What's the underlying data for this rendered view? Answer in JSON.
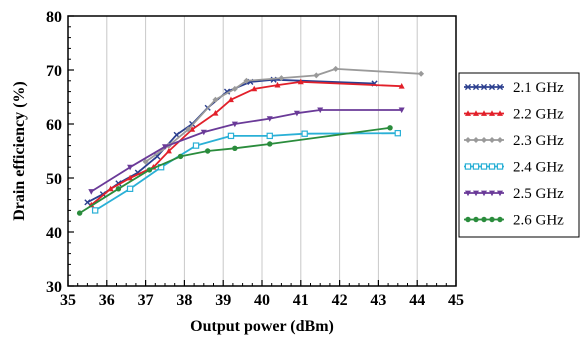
{
  "chart_data": {
    "type": "line",
    "title": "",
    "xlabel": "Output power (dBm)",
    "ylabel": "Drain efficiency (%)",
    "xlim": [
      35,
      45
    ],
    "ylim": [
      30,
      80
    ],
    "xticks": [
      35,
      36,
      37,
      38,
      39,
      40,
      41,
      42,
      43,
      44,
      45
    ],
    "yticks": [
      30,
      40,
      50,
      60,
      70,
      80
    ],
    "grid": "vertical",
    "legend_position": "right",
    "series": [
      {
        "name": "2.1 GHz",
        "color": "#2b3f8f",
        "marker": "x",
        "points": [
          [
            35.5,
            45.5
          ],
          [
            35.9,
            47
          ],
          [
            36.3,
            49
          ],
          [
            36.8,
            51
          ],
          [
            37.3,
            54
          ],
          [
            37.8,
            58
          ],
          [
            38.2,
            60
          ],
          [
            38.6,
            63
          ],
          [
            39.1,
            66
          ],
          [
            39.7,
            67.8
          ],
          [
            40.3,
            68.2
          ],
          [
            42.9,
            67.5
          ]
        ]
      },
      {
        "name": "2.2 GHz",
        "color": "#e2202a",
        "marker": "triangle-up",
        "points": [
          [
            35.6,
            45
          ],
          [
            36.1,
            48
          ],
          [
            36.6,
            50
          ],
          [
            37.2,
            52
          ],
          [
            37.6,
            55
          ],
          [
            38.2,
            59
          ],
          [
            38.8,
            62
          ],
          [
            39.2,
            64.5
          ],
          [
            39.8,
            66.5
          ],
          [
            40.4,
            67.2
          ],
          [
            41.0,
            67.8
          ],
          [
            43.6,
            67
          ]
        ]
      },
      {
        "name": "2.3 GHz",
        "color": "#9a9a9a",
        "marker": "diamond",
        "points": [
          [
            37.0,
            53
          ],
          [
            37.6,
            56
          ],
          [
            38.1,
            59
          ],
          [
            38.8,
            64.5
          ],
          [
            39.3,
            66.5
          ],
          [
            39.6,
            68
          ],
          [
            40.5,
            68.5
          ],
          [
            41.4,
            69
          ],
          [
            41.9,
            70.2
          ],
          [
            44.1,
            69.3
          ]
        ]
      },
      {
        "name": "2.4 GHz",
        "color": "#2ab0d6",
        "marker": "square",
        "points": [
          [
            35.7,
            44
          ],
          [
            36.6,
            48
          ],
          [
            37.4,
            52
          ],
          [
            38.3,
            56
          ],
          [
            39.2,
            57.8
          ],
          [
            40.2,
            57.8
          ],
          [
            41.1,
            58.2
          ],
          [
            43.5,
            58.3
          ]
        ]
      },
      {
        "name": "2.5 GHz",
        "color": "#6a3a98",
        "marker": "triangle-down",
        "points": [
          [
            35.6,
            47.5
          ],
          [
            36.6,
            52
          ],
          [
            37.5,
            55.8
          ],
          [
            38.5,
            58.5
          ],
          [
            39.3,
            60
          ],
          [
            40.2,
            61
          ],
          [
            40.9,
            62
          ],
          [
            41.5,
            62.6
          ],
          [
            43.6,
            62.6
          ]
        ]
      },
      {
        "name": "2.6 GHz",
        "color": "#2a8c3c",
        "marker": "circle",
        "points": [
          [
            35.3,
            43.5
          ],
          [
            36.3,
            48
          ],
          [
            37.1,
            51.5
          ],
          [
            37.9,
            54
          ],
          [
            38.6,
            55
          ],
          [
            39.3,
            55.5
          ],
          [
            40.2,
            56.3
          ],
          [
            43.3,
            59.3
          ]
        ]
      }
    ]
  }
}
